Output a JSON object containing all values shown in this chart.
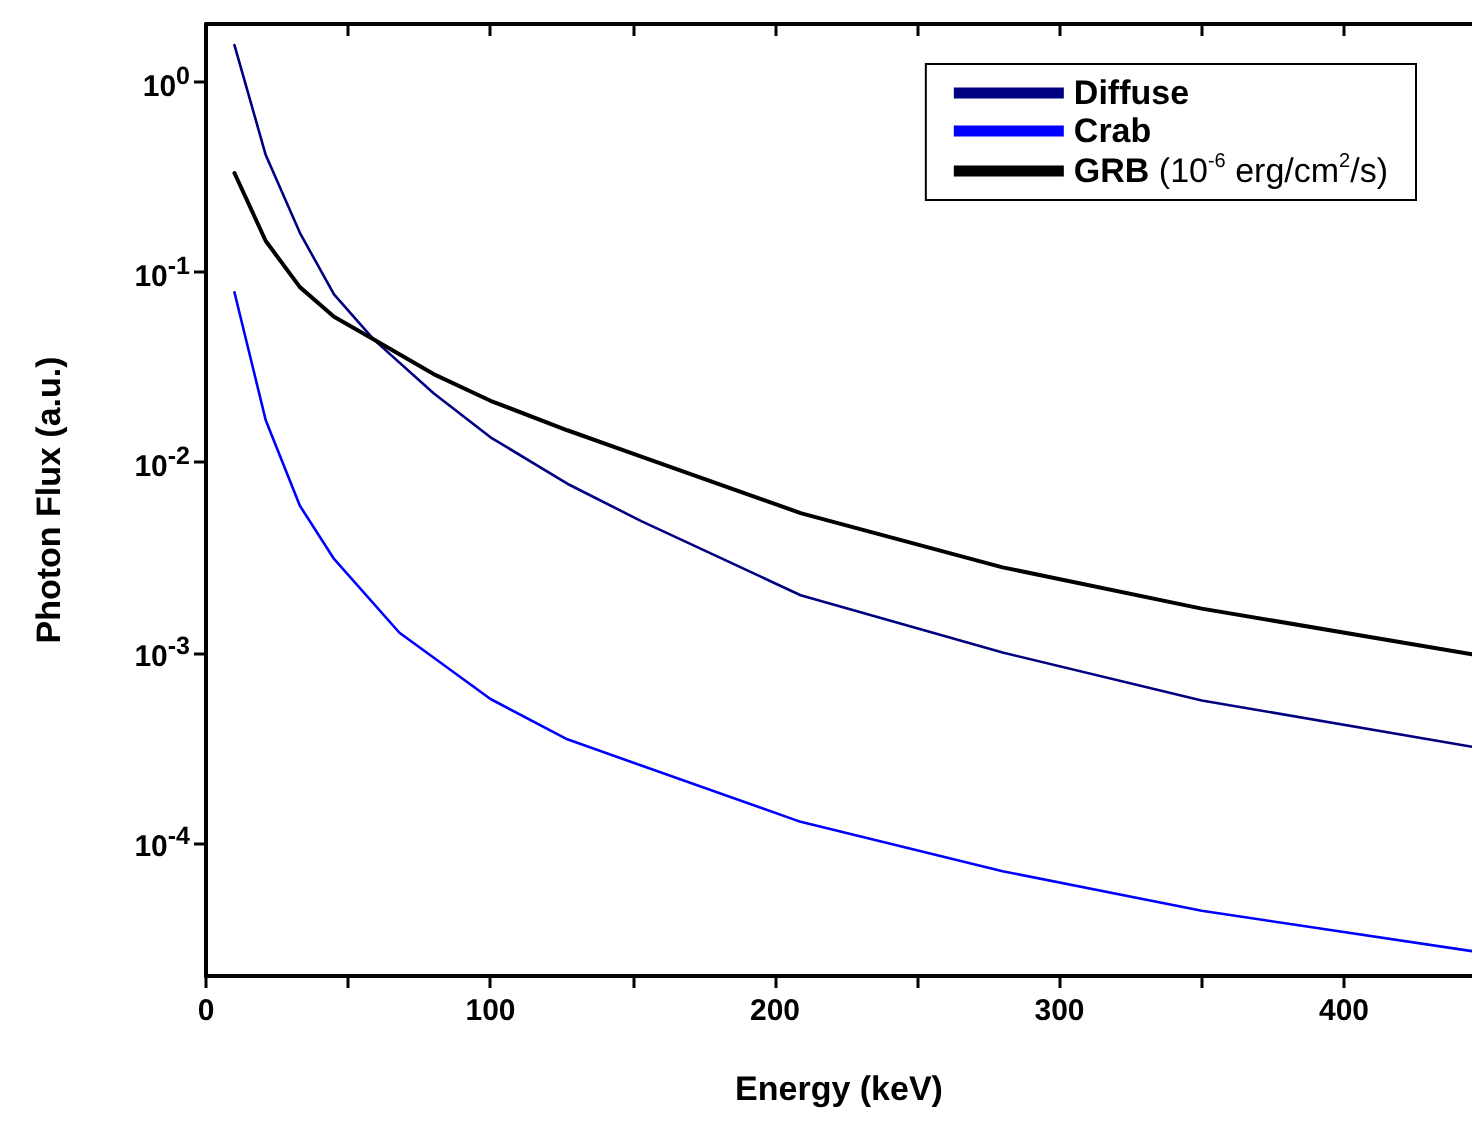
{
  "chart_data": {
    "type": "line",
    "xlabel": "Energy (keV)",
    "ylabel": "Photon Flux (a.u.)",
    "xlim": [
      0,
      445
    ],
    "xticks": [
      0,
      {
        "value": 50,
        "label": null
      },
      100,
      {
        "value": 150,
        "label": null
      },
      200,
      {
        "value": 250,
        "label": null
      },
      300,
      {
        "value": 350,
        "label": null
      },
      400
    ],
    "ylim": [
      2e-05,
      2
    ],
    "yticks": [
      {
        "value": 0.0001,
        "label": "10$^{-4}$"
      },
      {
        "value": 0.001,
        "label": "10$^{-3}$"
      },
      {
        "value": 0.01,
        "label": "10$^{-2}$"
      },
      {
        "value": 0.1,
        "label": "10$^{-1}$"
      },
      {
        "value": 1,
        "label": "10$^{0}$"
      }
    ],
    "log": "y",
    "grid": false,
    "legend": "top right",
    "marker": "none",
    "line_style": "solid",
    "series": [
      {
        "name": "Diffuse",
        "color": "#000080",
        "x": [
          10,
          21,
          33,
          45,
          59,
          80,
          100,
          127,
          153,
          209,
          280,
          350,
          445
        ],
        "values": [
          1.55,
          0.41,
          0.16,
          0.076,
          0.044,
          0.023,
          0.0135,
          0.0077,
          0.0049,
          0.002,
          0.001,
          0.00056,
          0.00032
        ]
      },
      {
        "name": "Crab",
        "color": "#0000ff",
        "x": [
          10,
          21,
          33,
          45,
          68,
          100,
          127,
          153,
          209,
          280,
          350,
          445
        ],
        "values": [
          0.078,
          0.0166,
          0.0059,
          0.0031,
          0.00127,
          0.00057,
          0.00035,
          0.000255,
          0.000129,
          7.1e-05,
          4.4e-05,
          2.7e-05
        ]
      },
      {
        "name": "GRB (10$^{-6}$ erg/cm$^{2}$/s)",
        "color": "#000000",
        "x": [
          10,
          21,
          33,
          45,
          59,
          80,
          100,
          127,
          153,
          209,
          280,
          350,
          445
        ],
        "values": [
          0.33,
          0.145,
          0.083,
          0.058,
          0.044,
          0.029,
          0.021,
          0.0147,
          0.0107,
          0.0054,
          0.0028,
          0.0017,
          0.00098
        ]
      }
    ]
  }
}
